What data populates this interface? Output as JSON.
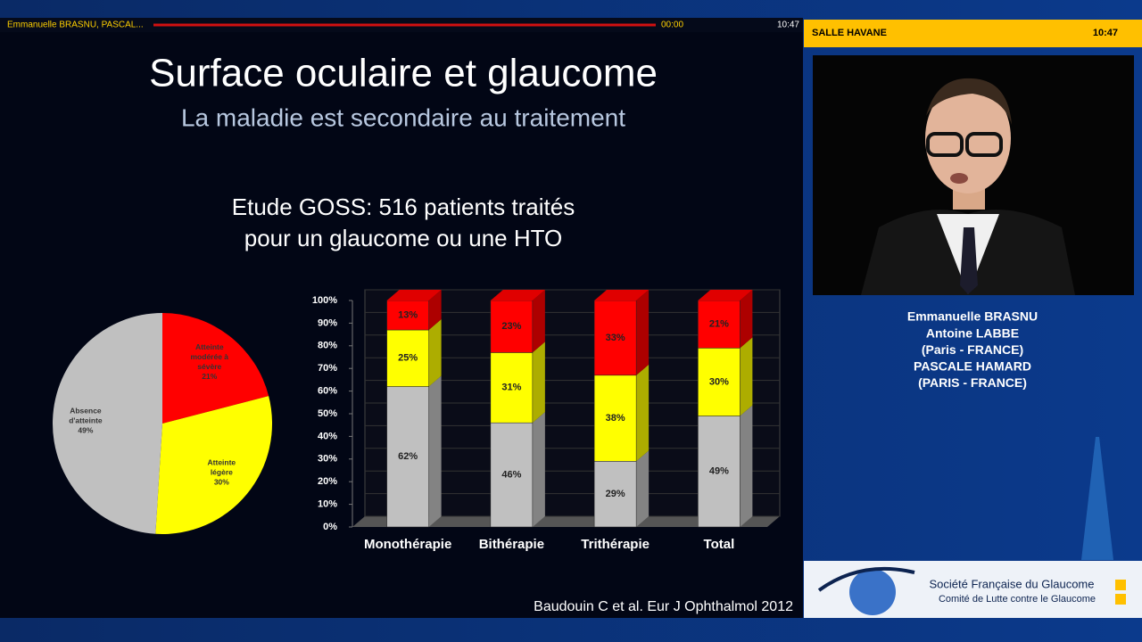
{
  "player": {
    "presenter": "Emmanuelle BRASNU, PASCAL...",
    "elapsed": "00:00",
    "clock": "10:47"
  },
  "sidebar": {
    "room": "SALLE HAVANE",
    "clock": "10:47",
    "speakers": [
      "Emmanuelle BRASNU",
      "Antoine LABBE",
      "(Paris - FRANCE)",
      "PASCALE HAMARD",
      "(PARIS - FRANCE)"
    ],
    "logo": {
      "name": "Société Française du Glaucome",
      "subtitle": "Comité de Lutte contre le Glaucome"
    }
  },
  "slide": {
    "title": "Surface oculaire et glaucome",
    "subtitle": "La maladie est secondaire au traitement",
    "study": [
      "Etude GOSS: 516 patients traités",
      "pour un glaucome ou une HTO"
    ],
    "citation": "Baudouin C et al. Eur J Ophthalmol 2012"
  },
  "chart_data": [
    {
      "type": "pie",
      "categories": [
        "Atteinte modérée à sévère",
        "Atteinte légère",
        "Absence d'atteinte"
      ],
      "values": [
        21,
        30,
        49
      ],
      "value_labels": [
        "21%",
        "30%",
        "49%"
      ],
      "colors": [
        "#ff0000",
        "#ffff00",
        "#c0c0c0"
      ]
    },
    {
      "type": "bar",
      "stacked": true,
      "categories": [
        "Monothérapie",
        "Bithérapie",
        "Trithérapie",
        "Total"
      ],
      "series": [
        {
          "color": "#c0c0c0",
          "values": [
            62,
            46,
            29,
            49
          ],
          "value_labels": [
            "62%",
            "46%",
            "29%",
            "49%"
          ]
        },
        {
          "color": "#ffff00",
          "values": [
            25,
            31,
            38,
            30
          ],
          "value_labels": [
            "25%",
            "31%",
            "38%",
            "30%"
          ]
        },
        {
          "color": "#ff0000",
          "values": [
            13,
            23,
            33,
            21
          ],
          "value_labels": [
            "13%",
            "23%",
            "33%",
            "21%"
          ]
        }
      ],
      "ylim": [
        0,
        100
      ],
      "yticks": [
        {
          "value": 0,
          "label": "0%"
        },
        {
          "value": 10,
          "label": "10%"
        },
        {
          "value": 20,
          "label": "20%"
        },
        {
          "value": 30,
          "label": "30%"
        },
        {
          "value": 40,
          "label": "40%"
        },
        {
          "value": 50,
          "label": "50%"
        },
        {
          "value": 60,
          "label": "60%"
        },
        {
          "value": 70,
          "label": "70%"
        },
        {
          "value": 80,
          "label": "80%"
        },
        {
          "value": 90,
          "label": "90%"
        },
        {
          "value": 100,
          "label": "100%"
        }
      ],
      "grid": true
    }
  ]
}
